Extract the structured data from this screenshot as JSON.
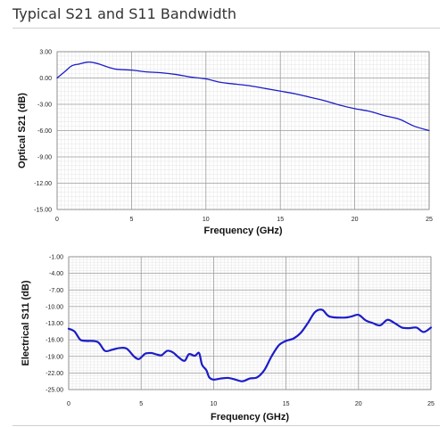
{
  "page": {
    "title": "Typical S21 and S11 Bandwidth"
  },
  "chart_data": [
    {
      "type": "line",
      "xlabel": "Frequency (GHz)",
      "ylabel": "Optical S21 (dB)",
      "xlim": [
        0,
        25
      ],
      "ylim": [
        -15,
        3
      ],
      "x_ticks": [
        "0",
        "5",
        "10",
        "15",
        "20",
        "25"
      ],
      "y_ticks": [
        "3.00",
        "0.00",
        "-3.00",
        "-6.00",
        "-9.00",
        "-12.00",
        "-15.00"
      ],
      "x_tick_values": [
        0,
        5,
        10,
        15,
        20,
        25
      ],
      "y_tick_values": [
        3,
        0,
        -3,
        -6,
        -9,
        -12,
        -15
      ],
      "grid": true,
      "line_color": "#1c1cc8",
      "series": [
        {
          "x": [
            0,
            0.5,
            1,
            1.5,
            2,
            2.3,
            2.8,
            3.5,
            4,
            5,
            6,
            7,
            8,
            9,
            10,
            11,
            12,
            13,
            14,
            15,
            16,
            17,
            18,
            19,
            20,
            21,
            22,
            23,
            24,
            25
          ],
          "values": [
            0.0,
            0.7,
            1.4,
            1.6,
            1.8,
            1.8,
            1.6,
            1.2,
            1.0,
            0.9,
            0.7,
            0.6,
            0.4,
            0.1,
            -0.1,
            -0.5,
            -0.7,
            -0.9,
            -1.2,
            -1.5,
            -1.8,
            -2.2,
            -2.6,
            -3.1,
            -3.5,
            -3.8,
            -4.3,
            -4.7,
            -5.5,
            -6.0
          ]
        }
      ]
    },
    {
      "type": "line",
      "xlabel": "Frequency  (GHz)",
      "ylabel": "Electrical S11 (dB)",
      "xlim": [
        0,
        25
      ],
      "ylim": [
        -25,
        -1
      ],
      "x_ticks": [
        "0",
        "5",
        "10",
        "15",
        "20",
        "25"
      ],
      "y_ticks": [
        "-1.00",
        "-4.00",
        "-7.00",
        "-10.00",
        "-13.00",
        "-16.00",
        "-19.00",
        "-22.00",
        "-25.00"
      ],
      "x_tick_values": [
        0,
        5,
        10,
        15,
        20,
        25
      ],
      "y_tick_values": [
        -1,
        -4,
        -7,
        -10,
        -13,
        -16,
        -19,
        -22,
        -25
      ],
      "grid": true,
      "line_color": "#1c1cc8",
      "series": [
        {
          "x": [
            0,
            0.4,
            0.8,
            1.2,
            2,
            2.5,
            3,
            3.5,
            4,
            4.5,
            4.8,
            5,
            5.3,
            5.7,
            6,
            6.4,
            6.8,
            7.2,
            7.6,
            8,
            8.3,
            8.7,
            9,
            9.2,
            9.5,
            9.7,
            10,
            10.5,
            11,
            11.5,
            12,
            12.5,
            13,
            13.5,
            14,
            14.5,
            15,
            15.5,
            16,
            16.5,
            17,
            17.5,
            18,
            19,
            19.5,
            20,
            20.5,
            21,
            21.5,
            22,
            22.5,
            23,
            23.5,
            24,
            24.5,
            25
          ],
          "values": [
            -14.0,
            -14.5,
            -16.0,
            -16.2,
            -16.4,
            -18.0,
            -17.8,
            -17.5,
            -17.6,
            -19.0,
            -19.5,
            -19.2,
            -18.5,
            -18.4,
            -18.6,
            -18.8,
            -18.0,
            -18.3,
            -19.2,
            -19.8,
            -18.6,
            -18.9,
            -18.4,
            -20.5,
            -21.5,
            -22.8,
            -23.2,
            -23.0,
            -22.9,
            -23.2,
            -23.5,
            -23.0,
            -22.8,
            -21.5,
            -19.0,
            -17.0,
            -16.2,
            -15.8,
            -14.8,
            -13.0,
            -11.0,
            -10.6,
            -11.8,
            -12.0,
            -11.8,
            -11.5,
            -12.5,
            -13.0,
            -13.4,
            -12.4,
            -13.0,
            -13.8,
            -13.9,
            -13.8,
            -14.6,
            -13.8
          ]
        }
      ]
    }
  ]
}
